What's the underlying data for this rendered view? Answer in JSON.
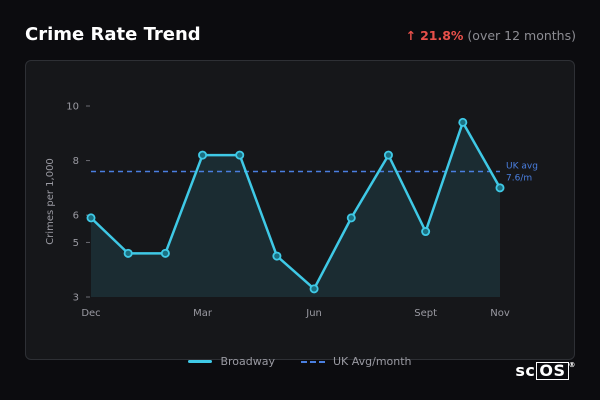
{
  "header": {
    "title": "Crime Rate Trend",
    "trend_arrow": "↑",
    "trend_value": "21.8%",
    "trend_note": "(over 12 months)"
  },
  "chart_data": {
    "type": "line",
    "title": "Crime Rate Trend",
    "xlabel": "",
    "ylabel": "Crimes per 1,000",
    "x_ticks": [
      "Dec",
      "Mar",
      "Jun",
      "Sept",
      "Nov"
    ],
    "x_tick_index": [
      0,
      3,
      6,
      9,
      11
    ],
    "y_ticks": [
      3,
      5,
      6,
      8,
      10
    ],
    "ylim": [
      3,
      10
    ],
    "grid": false,
    "legend_position": "bottom-center",
    "series": [
      {
        "name": "Broadway",
        "color": "#3fc9e6",
        "values": [
          5.9,
          4.6,
          4.6,
          8.2,
          8.2,
          4.5,
          3.3,
          5.9,
          8.2,
          5.4,
          9.4,
          7.0
        ]
      }
    ],
    "reference_line": {
      "name": "UK Avg/month",
      "value": 7.6,
      "label_line1": "UK avg",
      "label_line2": "7.6/m",
      "color": "#4a7fe0"
    }
  },
  "legend": {
    "series_label": "Broadway",
    "reference_label": "UK Avg/month"
  },
  "logo": {
    "prefix": "sc",
    "boxed": "OS",
    "mark": "®"
  }
}
